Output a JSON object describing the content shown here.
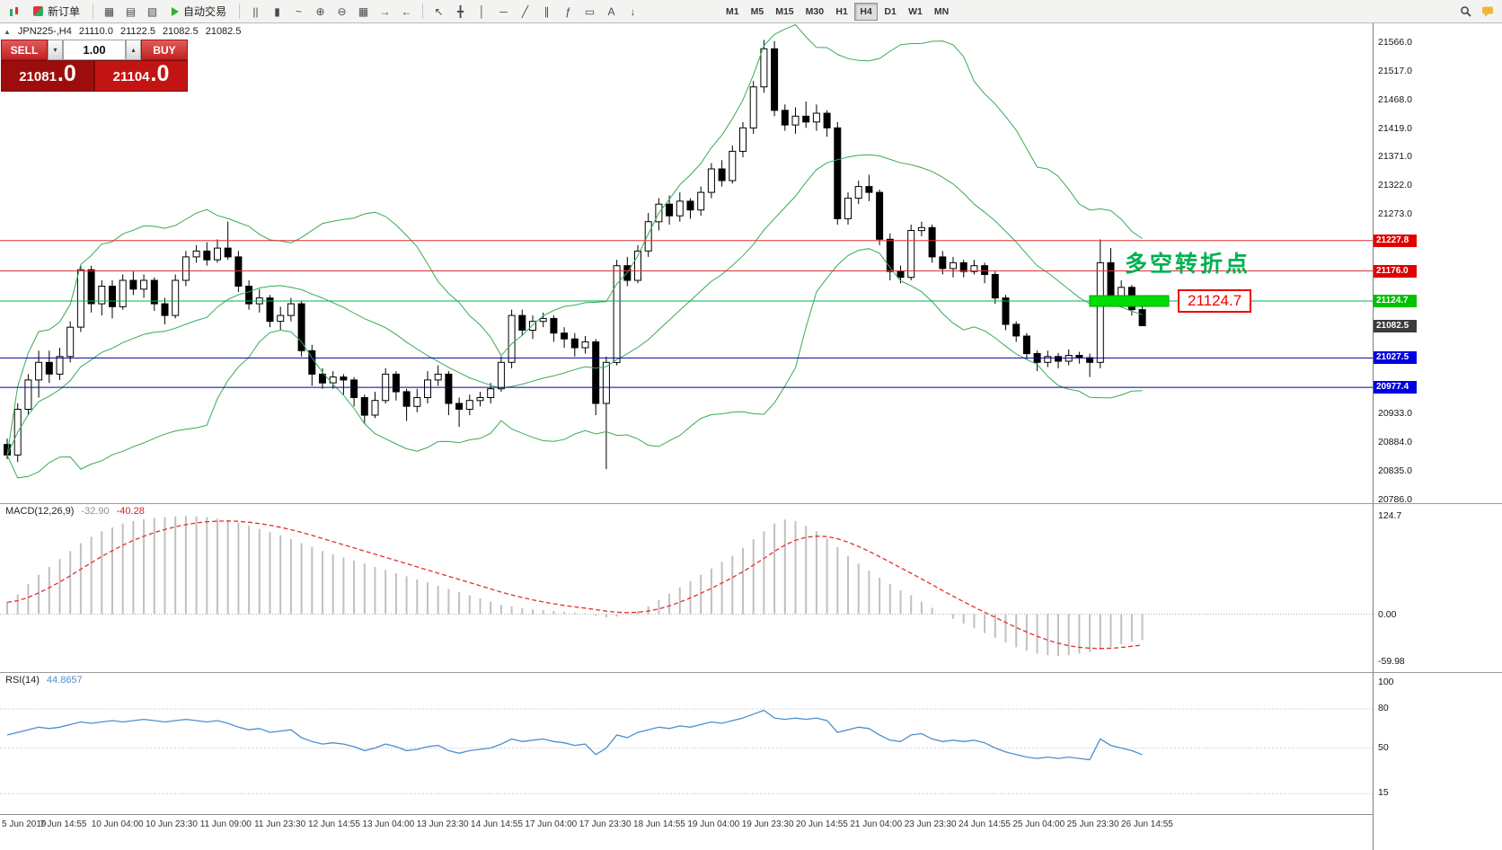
{
  "toolbar": {
    "new_order_label": "新订单",
    "auto_trading_label": "自动交易",
    "view_icons": [
      {
        "name": "charts-tile-icon",
        "glyph": "▦"
      },
      {
        "name": "market-watch-icon",
        "glyph": "▤"
      },
      {
        "name": "navigator-icon",
        "glyph": "▧"
      }
    ],
    "chart_icons": [
      {
        "name": "bar-chart-icon",
        "glyph": "||"
      },
      {
        "name": "candlestick-chart-icon",
        "glyph": "▮"
      },
      {
        "name": "line-chart-icon",
        "glyph": "~"
      },
      {
        "name": "zoom-in-icon",
        "glyph": "⊕"
      },
      {
        "name": "zoom-out-icon",
        "glyph": "⊖"
      },
      {
        "name": "tile-windows-icon",
        "glyph": "▦"
      },
      {
        "name": "auto-scroll-icon",
        "glyph": "→"
      },
      {
        "name": "chart-shift-icon",
        "glyph": "←"
      }
    ],
    "tool_icons": [
      {
        "name": "cursor-icon",
        "glyph": "↖"
      },
      {
        "name": "crosshair-icon",
        "glyph": "╋"
      },
      {
        "name": "vertical-line-icon",
        "glyph": "│"
      },
      {
        "name": "horizontal-line-icon",
        "glyph": "─"
      },
      {
        "name": "trendline-icon",
        "glyph": "╱"
      },
      {
        "name": "channel-icon",
        "glyph": "∥"
      },
      {
        "name": "fibonacci-icon",
        "glyph": "ƒ"
      },
      {
        "name": "shapes-icon",
        "glyph": "▭"
      },
      {
        "name": "text-icon",
        "glyph": "A"
      },
      {
        "name": "arrows-icon",
        "glyph": "↓"
      }
    ],
    "timeframes": [
      {
        "label": "M1",
        "active": false
      },
      {
        "label": "M5",
        "active": false
      },
      {
        "label": "M15",
        "active": false
      },
      {
        "label": "M30",
        "active": false
      },
      {
        "label": "H1",
        "active": false
      },
      {
        "label": "H4",
        "active": true
      },
      {
        "label": "D1",
        "active": false
      },
      {
        "label": "W1",
        "active": false
      },
      {
        "label": "MN",
        "active": false
      }
    ]
  },
  "symbol_bar": {
    "collapse_icon": "▲",
    "symbol": "JPN225-,H4",
    "open": "21110.0",
    "high": "21122.5",
    "low": "21082.5",
    "close": "21082.5"
  },
  "trade_panel": {
    "sell_label": "SELL",
    "buy_label": "BUY",
    "volume": "1.00",
    "step_down_glyph": "▾",
    "step_up_glyph": "▴",
    "sell_price_main": "21081",
    "sell_price_frac": ".0",
    "buy_price_main": "21104",
    "buy_price_frac": ".0"
  },
  "chart_data": {
    "type": "candlestick",
    "symbol": "JPN225-",
    "period": "H4",
    "price_range": [
      20786.0,
      21566.0
    ],
    "candles": [
      [
        20880,
        20890,
        20855,
        20862
      ],
      [
        20862,
        20950,
        20850,
        20940
      ],
      [
        20940,
        21000,
        20930,
        20990
      ],
      [
        20990,
        21040,
        20960,
        21020
      ],
      [
        21020,
        21040,
        20985,
        21000
      ],
      [
        21000,
        21045,
        20990,
        21030
      ],
      [
        21030,
        21090,
        21020,
        21080
      ],
      [
        21080,
        21185,
        21072,
        21178
      ],
      [
        21178,
        21185,
        21105,
        21120
      ],
      [
        21120,
        21160,
        21100,
        21150
      ],
      [
        21150,
        21160,
        21095,
        21115
      ],
      [
        21115,
        21170,
        21110,
        21160
      ],
      [
        21160,
        21175,
        21135,
        21145
      ],
      [
        21145,
        21170,
        21130,
        21160
      ],
      [
        21160,
        21165,
        21108,
        21120
      ],
      [
        21120,
        21130,
        21085,
        21100
      ],
      [
        21100,
        21170,
        21095,
        21160
      ],
      [
        21160,
        21210,
        21150,
        21200
      ],
      [
        21200,
        21220,
        21190,
        21210
      ],
      [
        21210,
        21225,
        21185,
        21195
      ],
      [
        21195,
        21230,
        21190,
        21215
      ],
      [
        21215,
        21260,
        21195,
        21200
      ],
      [
        21200,
        21210,
        21140,
        21150
      ],
      [
        21150,
        21160,
        21110,
        21120
      ],
      [
        21120,
        21145,
        21105,
        21130
      ],
      [
        21130,
        21135,
        21080,
        21090
      ],
      [
        21090,
        21115,
        21075,
        21100
      ],
      [
        21100,
        21130,
        21090,
        21120
      ],
      [
        21120,
        21125,
        21030,
        21040
      ],
      [
        21040,
        21050,
        20980,
        21000
      ],
      [
        21000,
        21010,
        20975,
        20985
      ],
      [
        20985,
        21005,
        20975,
        20995
      ],
      [
        20995,
        21000,
        20965,
        20990
      ],
      [
        20990,
        20995,
        20945,
        20960
      ],
      [
        20960,
        20965,
        20915,
        20930
      ],
      [
        20930,
        20970,
        20925,
        20955
      ],
      [
        20955,
        21010,
        20950,
        21000
      ],
      [
        21000,
        21005,
        20955,
        20970
      ],
      [
        20970,
        20975,
        20920,
        20945
      ],
      [
        20945,
        20975,
        20935,
        20960
      ],
      [
        20960,
        21005,
        20950,
        20990
      ],
      [
        20990,
        21015,
        20980,
        21000
      ],
      [
        21000,
        21005,
        20930,
        20950
      ],
      [
        20950,
        20960,
        20910,
        20940
      ],
      [
        20940,
        20965,
        20930,
        20955
      ],
      [
        20955,
        20970,
        20945,
        20960
      ],
      [
        20960,
        20985,
        20950,
        20975
      ],
      [
        20975,
        21030,
        20970,
        21020
      ],
      [
        21020,
        21110,
        21010,
        21100
      ],
      [
        21100,
        21110,
        21065,
        21075
      ],
      [
        21075,
        21100,
        21060,
        21090
      ],
      [
        21090,
        21105,
        21080,
        21095
      ],
      [
        21095,
        21100,
        21055,
        21070
      ],
      [
        21070,
        21080,
        21045,
        21060
      ],
      [
        21060,
        21070,
        21030,
        21045
      ],
      [
        21045,
        21065,
        21035,
        21055
      ],
      [
        21055,
        21060,
        20930,
        20950
      ],
      [
        20950,
        21030,
        20838,
        21020
      ],
      [
        21020,
        21195,
        21015,
        21185
      ],
      [
        21185,
        21200,
        21150,
        21160
      ],
      [
        21160,
        21220,
        21155,
        21210
      ],
      [
        21210,
        21275,
        21200,
        21260
      ],
      [
        21260,
        21300,
        21245,
        21290
      ],
      [
        21290,
        21305,
        21255,
        21270
      ],
      [
        21270,
        21310,
        21260,
        21295
      ],
      [
        21295,
        21300,
        21265,
        21280
      ],
      [
        21280,
        21320,
        21270,
        21310
      ],
      [
        21310,
        21360,
        21300,
        21350
      ],
      [
        21350,
        21365,
        21320,
        21330
      ],
      [
        21330,
        21390,
        21325,
        21380
      ],
      [
        21380,
        21430,
        21370,
        21420
      ],
      [
        21420,
        21500,
        21410,
        21490
      ],
      [
        21490,
        21570,
        21480,
        21555
      ],
      [
        21555,
        21568,
        21440,
        21450
      ],
      [
        21450,
        21460,
        21415,
        21425
      ],
      [
        21425,
        21455,
        21410,
        21440
      ],
      [
        21440,
        21465,
        21420,
        21430
      ],
      [
        21430,
        21460,
        21415,
        21445
      ],
      [
        21445,
        21450,
        21405,
        21420
      ],
      [
        21420,
        21430,
        21255,
        21265
      ],
      [
        21265,
        21310,
        21255,
        21300
      ],
      [
        21300,
        21330,
        21290,
        21320
      ],
      [
        21320,
        21340,
        21295,
        21310
      ],
      [
        21310,
        21315,
        21220,
        21230
      ],
      [
        21230,
        21240,
        21160,
        21175
      ],
      [
        21175,
        21185,
        21155,
        21165
      ],
      [
        21165,
        21255,
        21160,
        21245
      ],
      [
        21245,
        21260,
        21235,
        21250
      ],
      [
        21250,
        21255,
        21190,
        21200
      ],
      [
        21200,
        21210,
        21170,
        21180
      ],
      [
        21180,
        21200,
        21165,
        21190
      ],
      [
        21190,
        21195,
        21165,
        21175
      ],
      [
        21175,
        21195,
        21170,
        21185
      ],
      [
        21185,
        21190,
        21155,
        21170
      ],
      [
        21170,
        21175,
        21120,
        21130
      ],
      [
        21130,
        21135,
        21075,
        21085
      ],
      [
        21085,
        21090,
        21055,
        21065
      ],
      [
        21065,
        21070,
        21025,
        21035
      ],
      [
        21035,
        21040,
        21005,
        21020
      ],
      [
        21020,
        21040,
        21012,
        21030
      ],
      [
        21030,
        21036,
        21010,
        21022
      ],
      [
        21022,
        21042,
        21015,
        21032
      ],
      [
        21032,
        21038,
        21018,
        21028
      ],
      [
        21028,
        21035,
        20995,
        21020
      ],
      [
        21020,
        21230,
        21010,
        21190
      ],
      [
        21190,
        21215,
        21120,
        21130
      ],
      [
        21130,
        21160,
        21115,
        21148
      ],
      [
        21148,
        21152,
        21100,
        21110
      ],
      [
        21110,
        21122.5,
        21082.5,
        21082.5
      ]
    ],
    "bollinger": {
      "period": 20,
      "deviation": 2,
      "color": "#3aaa55"
    },
    "hlines": [
      {
        "price": 21227.8,
        "color": "#e03030",
        "badge": "21227.8",
        "badge_color": "#e00000"
      },
      {
        "price": 21176.0,
        "color": "#e03030",
        "badge": "21176.0",
        "badge_color": "#e00000"
      },
      {
        "price": 21124.7,
        "color": "#00b050",
        "badge": "21124.7",
        "badge_color": "#00c000"
      },
      {
        "price": 21027.5,
        "color": "#000096",
        "badge": "21027.5",
        "badge_color": "#0000e0"
      },
      {
        "price": 20977.4,
        "color": "#000096",
        "badge": "20977.4",
        "badge_color": "#0000e0"
      }
    ],
    "current_price_badge": {
      "value": "21082.5",
      "color": "#3c3c3c"
    },
    "price_ticks": [
      "21566.0",
      "21517.0",
      "21468.0",
      "21419.0",
      "21371.0",
      "21322.0",
      "21273.0",
      "20933.0",
      "20884.0",
      "20835.0",
      "20786.0"
    ],
    "time_labels": [
      "5 Jun 2019",
      "7 Jun 14:55",
      "10 Jun 04:00",
      "10 Jun 23:30",
      "11 Jun 09:00",
      "11 Jun 23:30",
      "12 Jun 14:55",
      "13 Jun 04:00",
      "13 Jun 23:30",
      "14 Jun 14:55",
      "17 Jun 04:00",
      "17 Jun 23:30",
      "18 Jun 14:55",
      "19 Jun 04:00",
      "19 Jun 23:30",
      "20 Jun 14:55",
      "21 Jun 04:00",
      "23 Jun 23:30",
      "24 Jun 14:55",
      "25 Jun 04:00",
      "25 Jun 23:30",
      "26 Jun 14:55"
    ],
    "annotations": {
      "turning_point_text": "多空转折点",
      "turning_point_color": "#00b050",
      "highlight_price": 21124.7,
      "highlight_color": "#00dd00",
      "price_tag_label": "21124.7",
      "price_tag_color": "#f00000"
    },
    "macd": {
      "title": "MACD(12,26,9)",
      "value1": "-32.90",
      "value2": "-40.28",
      "axis_labels": [
        "124.7",
        "0.00",
        "-59.98"
      ],
      "histogram_color": "#c0c0c0",
      "signal_color": "#e03030",
      "histogram": [
        15,
        25,
        38,
        50,
        60,
        70,
        80,
        90,
        98,
        105,
        110,
        115,
        118,
        120,
        122,
        123,
        124,
        124.7,
        124,
        123,
        121,
        119,
        116,
        112,
        108,
        104,
        100,
        95,
        90,
        85,
        80,
        76,
        72,
        68,
        64,
        60,
        56,
        52,
        48,
        44,
        40,
        36,
        32,
        28,
        24,
        20,
        16,
        12,
        10,
        8,
        6,
        5,
        4,
        3,
        2,
        1,
        -2,
        -4,
        -3,
        0,
        4,
        10,
        18,
        26,
        34,
        42,
        50,
        58,
        66,
        74,
        84,
        95,
        105,
        115,
        120,
        118,
        112,
        105,
        96,
        85,
        74,
        64,
        55,
        46,
        38,
        30,
        24,
        16,
        8,
        0,
        -6,
        -12,
        -18,
        -24,
        -30,
        -36,
        -42,
        -46,
        -50,
        -52,
        -53,
        -52,
        -50,
        -48,
        -45,
        -42,
        -38,
        -35,
        -32.9
      ]
    },
    "rsi": {
      "title": "RSI(14)",
      "value": "44.8657",
      "levels": [
        "100",
        "80",
        "50",
        "15"
      ],
      "line_color": "#4d8fcc",
      "values": [
        60,
        62,
        64,
        66,
        65,
        66,
        68,
        70,
        69,
        70,
        71,
        70,
        71,
        72,
        71,
        70,
        71,
        72,
        71,
        70,
        71,
        69,
        66,
        64,
        65,
        62,
        63,
        64,
        58,
        55,
        53,
        54,
        53,
        51,
        48,
        50,
        53,
        51,
        48,
        49,
        51,
        52,
        48,
        46,
        48,
        49,
        50,
        53,
        57,
        55,
        56,
        57,
        55,
        54,
        52,
        53,
        45,
        50,
        60,
        58,
        62,
        64,
        66,
        65,
        67,
        66,
        68,
        70,
        69,
        71,
        73,
        76,
        79,
        73,
        72,
        73,
        72,
        73,
        71,
        62,
        64,
        66,
        65,
        60,
        56,
        55,
        60,
        61,
        57,
        55,
        56,
        55,
        56,
        54,
        50,
        47,
        45,
        43,
        42,
        43,
        42,
        43,
        42,
        41,
        57,
        52,
        50,
        48,
        44.87
      ]
    }
  }
}
